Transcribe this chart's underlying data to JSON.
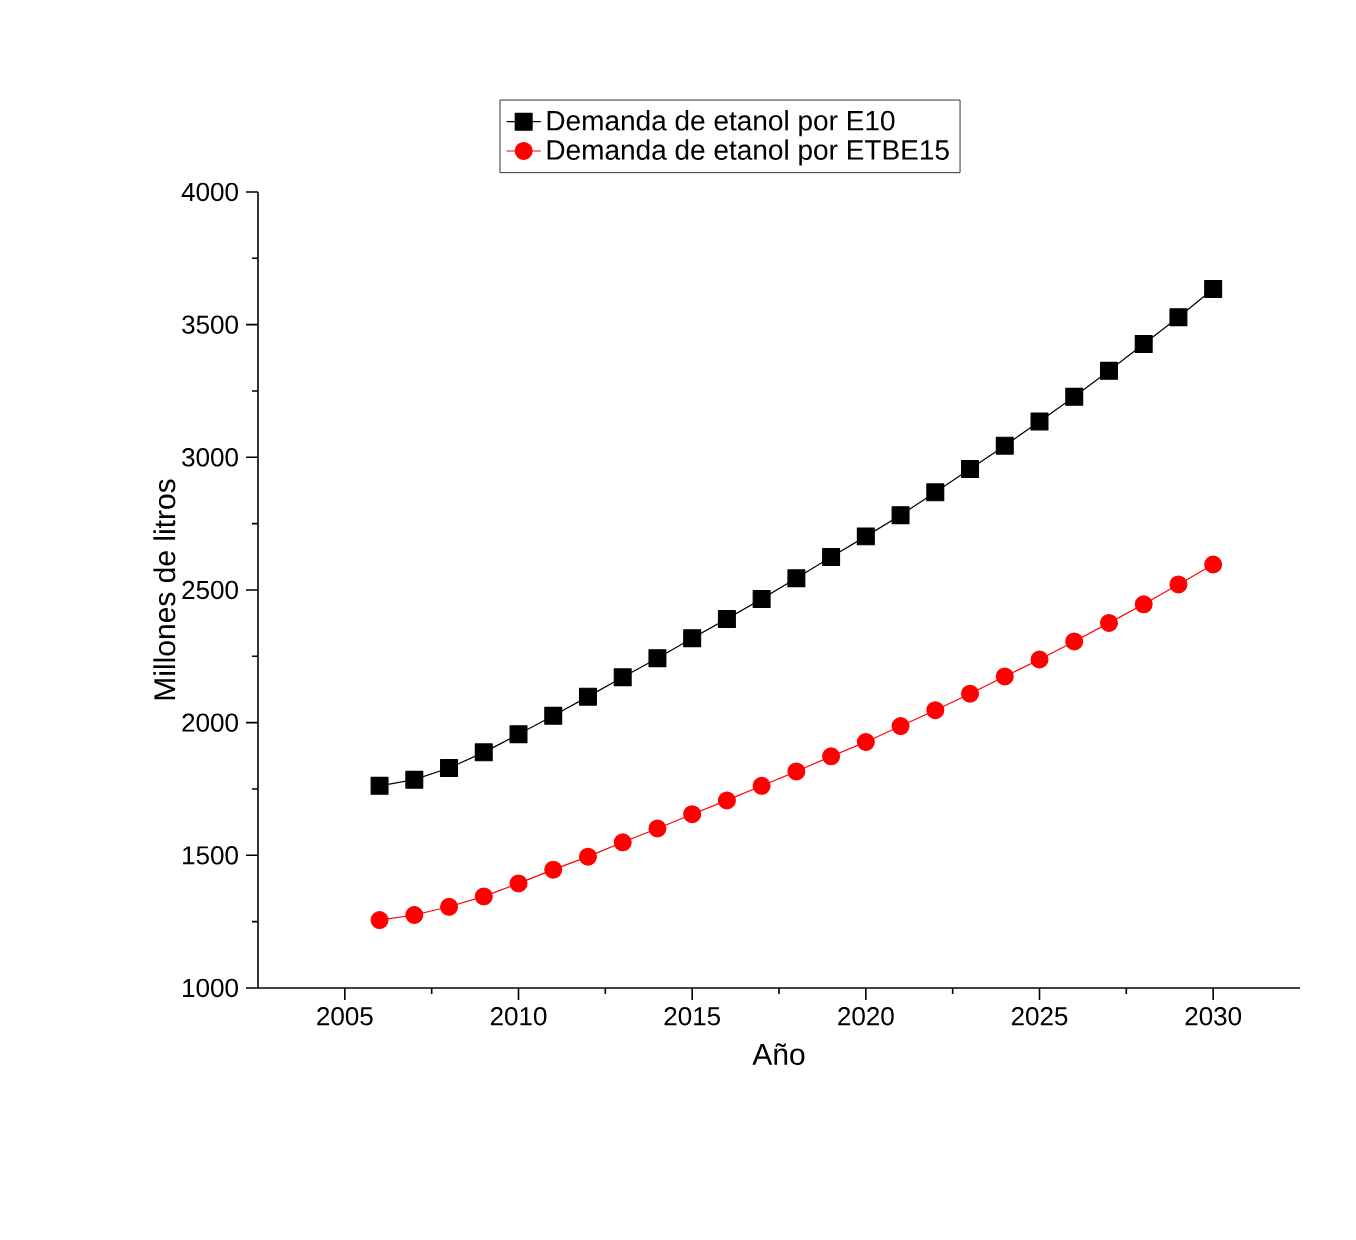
{
  "chart_data": {
    "type": "line",
    "xlabel": "Año",
    "ylabel": "Millones de litros",
    "x": [
      2006,
      2007,
      2008,
      2009,
      2010,
      2011,
      2012,
      2013,
      2014,
      2015,
      2016,
      2017,
      2018,
      2019,
      2020,
      2021,
      2022,
      2023,
      2024,
      2025,
      2026,
      2027,
      2028,
      2029,
      2030
    ],
    "series": [
      {
        "name": "Demanda de etanol por E10",
        "color": "#000000",
        "marker": "square",
        "values": [
          1762,
          1785,
          1829,
          1888,
          1956,
          2026,
          2098,
          2171,
          2243,
          2318,
          2391,
          2466,
          2544,
          2624,
          2702,
          2782,
          2868,
          2956,
          3044,
          3135,
          3228,
          3326,
          3427,
          3528,
          3634
        ]
      },
      {
        "name": "Demanda de etanol por ETBE15",
        "color": "#ff0000",
        "marker": "circle",
        "values": [
          1256,
          1275,
          1306,
          1345,
          1394,
          1446,
          1495,
          1549,
          1601,
          1655,
          1707,
          1762,
          1816,
          1873,
          1927,
          1987,
          2047,
          2109,
          2174,
          2238,
          2306,
          2376,
          2446,
          2521,
          2596
        ]
      }
    ],
    "xlim": [
      2002.5,
      2032.5
    ],
    "ylim": [
      1000,
      4000
    ],
    "xticks": [
      2005,
      2010,
      2015,
      2020,
      2025,
      2030
    ],
    "yticks": [
      1000,
      1500,
      2000,
      2500,
      3000,
      3500,
      4000
    ],
    "grid": false,
    "legend": "top",
    "line_style": "solid"
  }
}
